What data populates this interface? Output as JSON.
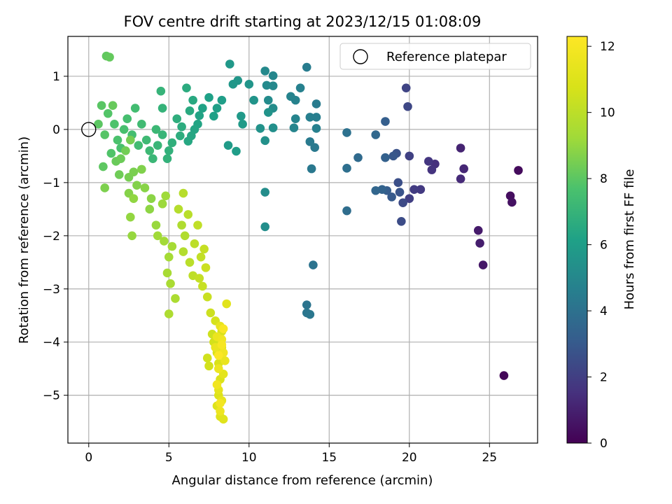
{
  "chart_data": {
    "type": "scatter",
    "title": "FOV centre drift starting at 2023/12/15 01:08:09",
    "xlabel": "Angular distance from reference (arcmin)",
    "ylabel": "Rotation from reference (arcmin)",
    "xlim": [
      -1.3,
      28.0
    ],
    "ylim": [
      -5.9,
      1.75
    ],
    "x_ticks": [
      0,
      5,
      10,
      15,
      20,
      25
    ],
    "y_ticks": [
      1,
      0,
      -1,
      -2,
      -3,
      -4,
      -5
    ],
    "grid": true,
    "legend": {
      "placement": "top-right",
      "entries": [
        "Reference platepar"
      ]
    },
    "reference_point": {
      "x": 0,
      "y": 0,
      "label": "Reference platepar"
    },
    "colorbar": {
      "label": "Hours from first FF file",
      "range": [
        0,
        12.3
      ],
      "ticks": [
        0,
        2,
        4,
        6,
        8,
        10,
        12
      ],
      "colormap": "viridis"
    },
    "points": [
      [
        25.9,
        -4.63,
        0.2
      ],
      [
        26.8,
        -0.77,
        0.3
      ],
      [
        26.3,
        -1.25,
        0.4
      ],
      [
        26.4,
        -1.37,
        0.5
      ],
      [
        24.6,
        -2.55,
        0.7
      ],
      [
        24.3,
        -1.9,
        0.8
      ],
      [
        24.4,
        -2.14,
        0.9
      ],
      [
        23.2,
        -0.35,
        1.1
      ],
      [
        23.4,
        -0.74,
        1.2
      ],
      [
        23.2,
        -0.93,
        1.3
      ],
      [
        21.6,
        -0.65,
        1.5
      ],
      [
        21.4,
        -0.76,
        1.6
      ],
      [
        21.2,
        -0.6,
        1.7
      ],
      [
        20.7,
        -1.13,
        1.8
      ],
      [
        20.3,
        -1.13,
        1.9
      ],
      [
        20.0,
        -1.3,
        2.0
      ],
      [
        20.0,
        -0.5,
        2.1
      ],
      [
        19.8,
        0.78,
        2.2
      ],
      [
        19.9,
        0.43,
        2.3
      ],
      [
        19.6,
        -1.38,
        2.4
      ],
      [
        19.5,
        -1.73,
        2.5
      ],
      [
        19.3,
        -1.0,
        2.6
      ],
      [
        19.2,
        -0.45,
        2.7
      ],
      [
        19.4,
        -1.18,
        2.8
      ],
      [
        19.0,
        -0.5,
        2.9
      ],
      [
        18.9,
        -1.27,
        3.0
      ],
      [
        18.6,
        -1.15,
        3.1
      ],
      [
        18.5,
        0.15,
        3.2
      ],
      [
        18.5,
        -0.53,
        3.3
      ],
      [
        18.3,
        -1.13,
        3.4
      ],
      [
        17.9,
        -1.15,
        3.5
      ],
      [
        17.9,
        -0.1,
        3.6
      ],
      [
        16.8,
        -0.53,
        3.7
      ],
      [
        16.1,
        -1.53,
        3.8
      ],
      [
        16.1,
        -0.73,
        3.9
      ],
      [
        16.1,
        -0.06,
        4.0
      ],
      [
        14.0,
        -2.55,
        4.1
      ],
      [
        13.6,
        -3.3,
        4.15
      ],
      [
        13.6,
        -3.45,
        4.2
      ],
      [
        13.8,
        -3.48,
        4.25
      ],
      [
        13.9,
        -0.74,
        4.3
      ],
      [
        14.1,
        -0.34,
        4.35
      ],
      [
        13.8,
        -0.23,
        4.4
      ],
      [
        14.2,
        0.48,
        4.45
      ],
      [
        13.6,
        1.17,
        4.5
      ],
      [
        14.2,
        0.23,
        4.55
      ],
      [
        13.8,
        0.23,
        4.6
      ],
      [
        14.2,
        0.02,
        4.65
      ],
      [
        13.2,
        0.78,
        4.7
      ],
      [
        12.9,
        0.55,
        4.75
      ],
      [
        12.6,
        0.62,
        4.8
      ],
      [
        12.9,
        0.2,
        4.85
      ],
      [
        12.8,
        0.03,
        4.9
      ],
      [
        11.5,
        1.01,
        4.95
      ],
      [
        11.5,
        0.82,
        5.0
      ],
      [
        11.0,
        1.1,
        5.05
      ],
      [
        11.1,
        0.83,
        5.1
      ],
      [
        11.2,
        0.55,
        5.15
      ],
      [
        11.5,
        0.4,
        5.2
      ],
      [
        11.0,
        -1.18,
        5.25
      ],
      [
        11.0,
        -1.83,
        5.3
      ],
      [
        11.5,
        0.03,
        5.35
      ],
      [
        11.0,
        -0.21,
        5.4
      ],
      [
        10.7,
        0.02,
        5.45
      ],
      [
        11.2,
        0.32,
        5.5
      ],
      [
        10.3,
        0.55,
        5.55
      ],
      [
        10.0,
        0.85,
        5.6
      ],
      [
        9.3,
        0.92,
        5.65
      ],
      [
        9.0,
        0.85,
        5.7
      ],
      [
        8.8,
        1.23,
        5.75
      ],
      [
        9.5,
        0.25,
        5.8
      ],
      [
        9.6,
        0.1,
        5.85
      ],
      [
        8.7,
        -0.3,
        5.9
      ],
      [
        9.2,
        -0.41,
        5.95
      ],
      [
        8.3,
        0.55,
        6.0
      ],
      [
        8.0,
        0.4,
        6.05
      ],
      [
        7.8,
        0.25,
        6.1
      ],
      [
        7.5,
        0.6,
        6.15
      ],
      [
        7.1,
        0.4,
        6.2
      ],
      [
        6.9,
        0.26,
        6.25
      ],
      [
        6.8,
        0.1,
        6.3
      ],
      [
        6.6,
        0.0,
        6.35
      ],
      [
        6.4,
        -0.12,
        6.4
      ],
      [
        6.2,
        -0.22,
        6.45
      ],
      [
        6.5,
        0.55,
        6.5
      ],
      [
        6.3,
        0.35,
        6.55
      ],
      [
        6.1,
        0.78,
        6.6
      ],
      [
        5.8,
        0.05,
        6.65
      ],
      [
        5.7,
        -0.12,
        6.7
      ],
      [
        5.5,
        0.2,
        6.75
      ],
      [
        5.2,
        -0.25,
        6.8
      ],
      [
        5.0,
        -0.4,
        6.85
      ],
      [
        4.9,
        -0.55,
        6.9
      ],
      [
        4.6,
        0.4,
        6.95
      ],
      [
        4.5,
        0.72,
        7.0
      ],
      [
        4.6,
        -0.1,
        7.05
      ],
      [
        4.3,
        -0.3,
        7.1
      ],
      [
        4.0,
        -0.55,
        7.15
      ],
      [
        4.2,
        0.0,
        7.2
      ],
      [
        3.8,
        -0.4,
        7.25
      ],
      [
        3.6,
        -0.2,
        7.3
      ],
      [
        3.3,
        0.1,
        7.35
      ],
      [
        3.1,
        -0.3,
        7.4
      ],
      [
        2.9,
        0.4,
        7.45
      ],
      [
        2.7,
        -0.1,
        7.5
      ],
      [
        2.4,
        0.2,
        7.55
      ],
      [
        2.2,
        0.0,
        7.6
      ],
      [
        2.0,
        -0.35,
        7.65
      ],
      [
        1.8,
        -0.2,
        7.7
      ],
      [
        1.6,
        0.1,
        7.75
      ],
      [
        1.4,
        -0.45,
        7.8
      ],
      [
        1.2,
        0.3,
        7.85
      ],
      [
        1.0,
        -0.1,
        7.9
      ],
      [
        0.8,
        0.45,
        7.95
      ],
      [
        0.6,
        0.1,
        8.0
      ],
      [
        0.9,
        -0.7,
        8.05
      ],
      [
        1.1,
        1.38,
        8.1
      ],
      [
        1.3,
        1.36,
        8.15
      ],
      [
        1.5,
        0.45,
        8.2
      ],
      [
        1.7,
        -0.6,
        8.25
      ],
      [
        2.0,
        -0.55,
        8.3
      ],
      [
        1.9,
        -0.85,
        8.35
      ],
      [
        2.3,
        -0.4,
        8.4
      ],
      [
        2.6,
        -0.2,
        8.45
      ],
      [
        2.5,
        -0.9,
        8.5
      ],
      [
        2.8,
        -0.8,
        8.55
      ],
      [
        1.0,
        -1.1,
        8.6
      ],
      [
        3.3,
        -0.75,
        8.65
      ],
      [
        3.0,
        -1.05,
        8.7
      ],
      [
        2.5,
        -1.2,
        8.75
      ],
      [
        3.5,
        -1.1,
        8.8
      ],
      [
        3.9,
        -1.3,
        8.85
      ],
      [
        3.8,
        -1.5,
        8.9
      ],
      [
        2.8,
        -1.3,
        8.95
      ],
      [
        2.6,
        -1.65,
        9.0
      ],
      [
        2.7,
        -2.0,
        9.05
      ],
      [
        4.2,
        -1.8,
        9.1
      ],
      [
        4.6,
        -1.4,
        9.15
      ],
      [
        4.8,
        -1.25,
        9.2
      ],
      [
        4.3,
        -2.0,
        9.25
      ],
      [
        4.7,
        -2.1,
        9.3
      ],
      [
        5.0,
        -2.4,
        9.35
      ],
      [
        5.2,
        -2.2,
        9.4
      ],
      [
        4.9,
        -2.7,
        9.45
      ],
      [
        5.1,
        -2.9,
        9.5
      ],
      [
        5.4,
        -3.18,
        9.55
      ],
      [
        5.0,
        -3.47,
        9.6
      ],
      [
        5.8,
        -1.8,
        9.65
      ],
      [
        6.0,
        -2.0,
        9.7
      ],
      [
        5.9,
        -2.3,
        9.75
      ],
      [
        5.6,
        -1.5,
        9.8
      ],
      [
        5.9,
        -1.2,
        9.85
      ],
      [
        6.2,
        -1.6,
        9.9
      ],
      [
        6.3,
        -2.5,
        9.95
      ],
      [
        6.6,
        -2.15,
        10.0
      ],
      [
        6.5,
        -2.75,
        10.05
      ],
      [
        6.8,
        -1.8,
        10.1
      ],
      [
        7.0,
        -2.4,
        10.15
      ],
      [
        6.9,
        -2.8,
        10.2
      ],
      [
        7.2,
        -2.25,
        10.25
      ],
      [
        7.1,
        -2.95,
        10.3
      ],
      [
        7.4,
        -3.15,
        10.35
      ],
      [
        7.3,
        -2.6,
        10.4
      ],
      [
        7.6,
        -3.45,
        10.45
      ],
      [
        7.7,
        -3.85,
        10.5
      ],
      [
        7.4,
        -4.3,
        10.55
      ],
      [
        7.5,
        -4.45,
        10.6
      ],
      [
        7.8,
        -4.0,
        10.65
      ],
      [
        7.9,
        -3.6,
        10.7
      ],
      [
        8.0,
        -4.2,
        10.75
      ],
      [
        8.1,
        -4.4,
        10.8
      ],
      [
        8.3,
        -3.8,
        10.85
      ],
      [
        8.2,
        -4.7,
        10.9
      ],
      [
        8.1,
        -5.0,
        10.95
      ],
      [
        8.0,
        -5.2,
        11.0
      ],
      [
        8.2,
        -5.4,
        11.05
      ],
      [
        8.4,
        -5.45,
        11.1
      ],
      [
        8.6,
        -3.28,
        11.15
      ],
      [
        8.3,
        -4.1,
        11.2
      ],
      [
        8.4,
        -4.6,
        11.25
      ],
      [
        8.1,
        -4.9,
        11.3
      ],
      [
        8.3,
        -5.1,
        11.35
      ],
      [
        8.2,
        -3.7,
        11.4
      ],
      [
        8.5,
        -4.35,
        11.45
      ],
      [
        7.9,
        -4.1,
        11.5
      ],
      [
        8.0,
        -3.9,
        11.55
      ],
      [
        8.1,
        -4.5,
        11.6
      ],
      [
        8.2,
        -5.3,
        11.65
      ],
      [
        8.3,
        -3.95,
        11.7
      ],
      [
        8.4,
        -4.2,
        11.75
      ],
      [
        8.0,
        -4.8,
        11.8
      ],
      [
        8.2,
        -5.15,
        11.9
      ],
      [
        8.3,
        -4.05,
        12.0
      ],
      [
        8.4,
        -3.75,
        12.1
      ],
      [
        8.1,
        -4.25,
        12.2
      ]
    ]
  }
}
